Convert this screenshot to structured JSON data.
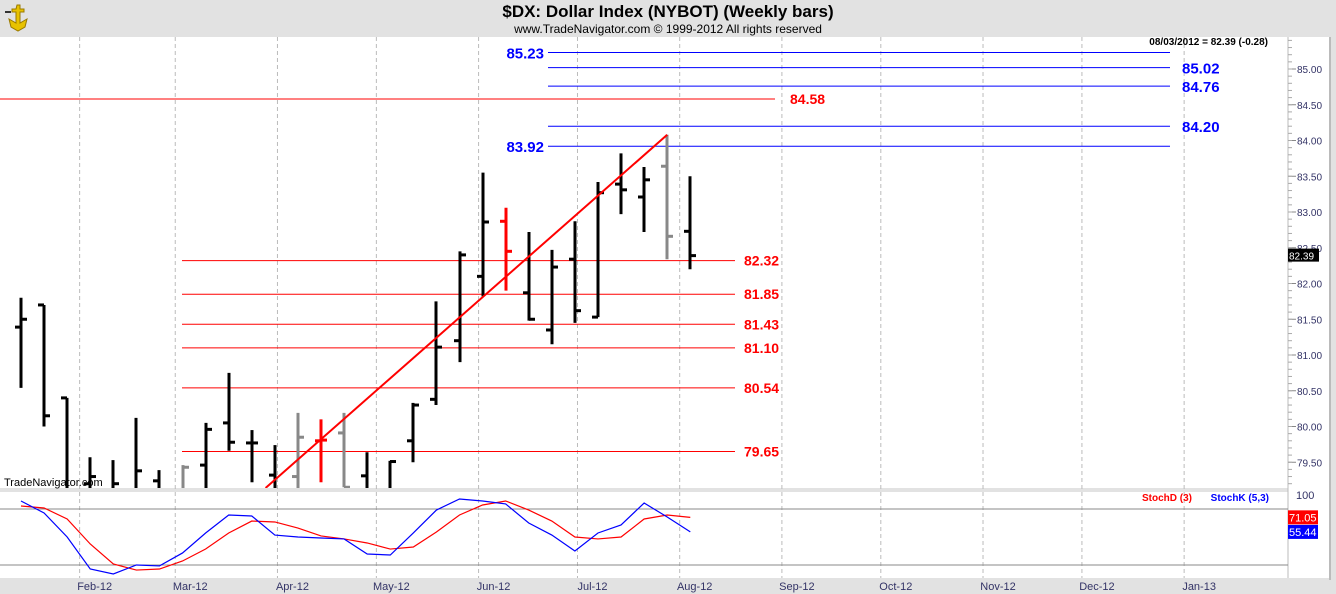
{
  "header": {
    "title": "$DX:  Dollar Index (NYBOT)  (Weekly bars)",
    "subtitle": "www.TradeNavigator.com © 1999-2012 All rights reserved",
    "watermark": "TradeNavigator.com",
    "logo": "TradeNavigator"
  },
  "chart_data": [
    {
      "type": "ohlc",
      "title": "$DX:  Dollar Index (NYBOT)  (Weekly bars)",
      "readout": "08/03/2012 = 82.39 (-0.28)",
      "last_price_label": "82.39",
      "ylim": [
        79.14,
        85.45
      ],
      "y_ticks": [
        "85.00",
        "84.50",
        "84.00",
        "83.50",
        "83.00",
        "82.50",
        "82.00",
        "81.50",
        "81.00",
        "80.50",
        "80.00",
        "79.50"
      ],
      "x_ticks": [
        "Feb-12",
        "Mar-12",
        "Apr-12",
        "May-12",
        "Jun-12",
        "Jul-12",
        "Aug-12",
        "Sep-12",
        "Oct-12",
        "Nov-12",
        "Dec-12",
        "Jan-13"
      ],
      "x_tick_dates": [
        "2012-02-01",
        "2012-03-01",
        "2012-04-01",
        "2012-05-01",
        "2012-06-01",
        "2012-07-01",
        "2012-08-01",
        "2012-09-01",
        "2012-10-01",
        "2012-11-01",
        "2012-12-01",
        "2013-01-01"
      ],
      "xlim": [
        "2012-01-13",
        "2013-01-18"
      ],
      "grid": "vertical dashed",
      "bars": [
        {
          "date": "2012-01-13",
          "o": 81.39,
          "h": 81.8,
          "l": 80.54,
          "c": 81.5,
          "color": "#000000"
        },
        {
          "date": "2012-01-20",
          "o": 81.7,
          "h": 81.7,
          "l": 80.0,
          "c": 80.15,
          "color": "#000000"
        },
        {
          "date": "2012-01-27",
          "o": 80.4,
          "h": 80.4,
          "l": 78.9,
          "c": 79.05,
          "color": "#000000"
        },
        {
          "date": "2012-02-03",
          "o": 79.2,
          "h": 79.57,
          "l": 78.8,
          "c": 79.3,
          "color": "#000000"
        },
        {
          "date": "2012-02-10",
          "o": 79.1,
          "h": 79.53,
          "l": 78.9,
          "c": 79.2,
          "color": "#000000"
        },
        {
          "date": "2012-02-17",
          "o": 79.0,
          "h": 80.12,
          "l": 78.9,
          "c": 79.38,
          "color": "#000000"
        },
        {
          "date": "2012-02-24",
          "o": 79.24,
          "h": 79.39,
          "l": 78.8,
          "c": 79.0,
          "color": "#000000"
        },
        {
          "date": "2012-03-02",
          "o": 79.0,
          "h": 79.46,
          "l": 78.9,
          "c": 79.43,
          "color": "#888888"
        },
        {
          "date": "2012-03-09",
          "o": 79.46,
          "h": 80.05,
          "l": 79.0,
          "c": 79.96,
          "color": "#000000"
        },
        {
          "date": "2012-03-16",
          "o": 80.05,
          "h": 80.75,
          "l": 79.66,
          "c": 79.78,
          "color": "#000000"
        },
        {
          "date": "2012-03-23",
          "o": 79.77,
          "h": 79.95,
          "l": 79.22,
          "c": 79.77,
          "color": "#000000"
        },
        {
          "date": "2012-03-30",
          "o": 79.32,
          "h": 79.74,
          "l": 79.0,
          "c": 79.1,
          "color": "#000000"
        },
        {
          "date": "2012-04-06",
          "o": 79.3,
          "h": 80.19,
          "l": 79.0,
          "c": 79.85,
          "color": "#888888"
        },
        {
          "date": "2012-04-13",
          "o": 79.8,
          "h": 80.1,
          "l": 79.22,
          "c": 79.81,
          "color": "#ff0000"
        },
        {
          "date": "2012-04-20",
          "o": 79.91,
          "h": 80.19,
          "l": 79.15,
          "c": 79.15,
          "color": "#888888"
        },
        {
          "date": "2012-04-27",
          "o": 79.31,
          "h": 79.64,
          "l": 79.0,
          "c": 79.1,
          "color": "#000000"
        },
        {
          "date": "2012-05-04",
          "o": 79.1,
          "h": 79.52,
          "l": 79.0,
          "c": 79.51,
          "color": "#000000"
        },
        {
          "date": "2012-05-11",
          "o": 79.8,
          "h": 80.33,
          "l": 79.5,
          "c": 80.3,
          "color": "#000000"
        },
        {
          "date": "2012-05-18",
          "o": 80.38,
          "h": 81.75,
          "l": 80.3,
          "c": 81.11,
          "color": "#000000"
        },
        {
          "date": "2012-05-25",
          "o": 81.2,
          "h": 82.45,
          "l": 80.9,
          "c": 82.4,
          "color": "#000000"
        },
        {
          "date": "2012-06-01",
          "o": 82.1,
          "h": 83.55,
          "l": 81.82,
          "c": 82.86,
          "color": "#000000"
        },
        {
          "date": "2012-06-08",
          "o": 82.87,
          "h": 83.06,
          "l": 81.9,
          "c": 82.45,
          "color": "#ff0000"
        },
        {
          "date": "2012-06-15",
          "o": 81.87,
          "h": 82.72,
          "l": 81.48,
          "c": 81.5,
          "color": "#000000"
        },
        {
          "date": "2012-06-22",
          "o": 81.35,
          "h": 82.47,
          "l": 81.15,
          "c": 82.23,
          "color": "#000000"
        },
        {
          "date": "2012-06-29",
          "o": 82.34,
          "h": 82.87,
          "l": 81.45,
          "c": 81.62,
          "color": "#000000"
        },
        {
          "date": "2012-07-06",
          "o": 81.53,
          "h": 83.42,
          "l": 81.53,
          "c": 83.27,
          "color": "#000000"
        },
        {
          "date": "2012-07-13",
          "o": 83.39,
          "h": 83.82,
          "l": 82.97,
          "c": 83.31,
          "color": "#000000"
        },
        {
          "date": "2012-07-20",
          "o": 83.21,
          "h": 83.63,
          "l": 82.72,
          "c": 83.45,
          "color": "#000000"
        },
        {
          "date": "2012-07-27",
          "o": 83.64,
          "h": 84.08,
          "l": 82.34,
          "c": 82.66,
          "color": "#888888"
        },
        {
          "date": "2012-08-03",
          "o": 82.73,
          "h": 83.5,
          "l": 82.2,
          "c": 82.39,
          "color": "#000000"
        }
      ],
      "trendline": {
        "from": {
          "date": "2012-03-02",
          "price": 79.14
        },
        "to": {
          "date": "2012-07-27",
          "price": 84.08
        },
        "color": "#ff0000"
      },
      "levels_blue": [
        {
          "value": 85.23,
          "label": "85.23",
          "label_side": "left"
        },
        {
          "value": 85.02,
          "label": "85.02",
          "label_side": "right"
        },
        {
          "value": 84.76,
          "label": "84.76",
          "label_side": "right"
        },
        {
          "value": 84.2,
          "label": "84.20",
          "label_side": "right"
        },
        {
          "value": 83.92,
          "label": "83.92",
          "label_side": "left"
        }
      ],
      "levels_red": [
        {
          "value": 84.58,
          "label": "84.58",
          "full_width": true
        },
        {
          "value": 82.32,
          "label": "82.32"
        },
        {
          "value": 81.85,
          "label": "81.85"
        },
        {
          "value": 81.43,
          "label": "81.43"
        },
        {
          "value": 81.1,
          "label": "81.10"
        },
        {
          "value": 80.54,
          "label": "80.54"
        },
        {
          "value": 79.65,
          "label": "79.65"
        }
      ],
      "colors": {
        "blue_level": "#0000ff",
        "red_level": "#ff0000"
      }
    },
    {
      "type": "line",
      "ylim": [
        0,
        100
      ],
      "y_ticks": [
        "100"
      ],
      "reference_lines": [
        80,
        20
      ],
      "series": [
        {
          "name": "StochD (3)",
          "color": "#ff0000",
          "last_label": "71.05",
          "values": [
            83.2,
            81.1,
            69.3,
            42.5,
            21.1,
            14.6,
            15.7,
            24.3,
            37.1,
            54.3,
            67.1,
            66.1,
            59.6,
            51.1,
            47.9,
            43.6,
            37.1,
            39.3,
            55.4,
            73.6,
            84.3,
            88.6,
            78.9,
            67.1,
            50.0,
            47.9,
            50.0,
            69.3,
            73.6,
            71.05
          ]
        },
        {
          "name": "StochK (5,3)",
          "color": "#0000ff",
          "last_label": "55.44",
          "values": [
            88.6,
            75.7,
            50.0,
            15.7,
            10.4,
            20.0,
            19.0,
            32.9,
            54.3,
            73.6,
            72.5,
            52.1,
            50.0,
            48.9,
            47.9,
            31.8,
            30.7,
            54.3,
            78.9,
            90.7,
            88.6,
            85.4,
            65.0,
            52.1,
            35.0,
            54.3,
            62.9,
            86.4,
            71.4,
            55.44
          ]
        }
      ]
    }
  ]
}
